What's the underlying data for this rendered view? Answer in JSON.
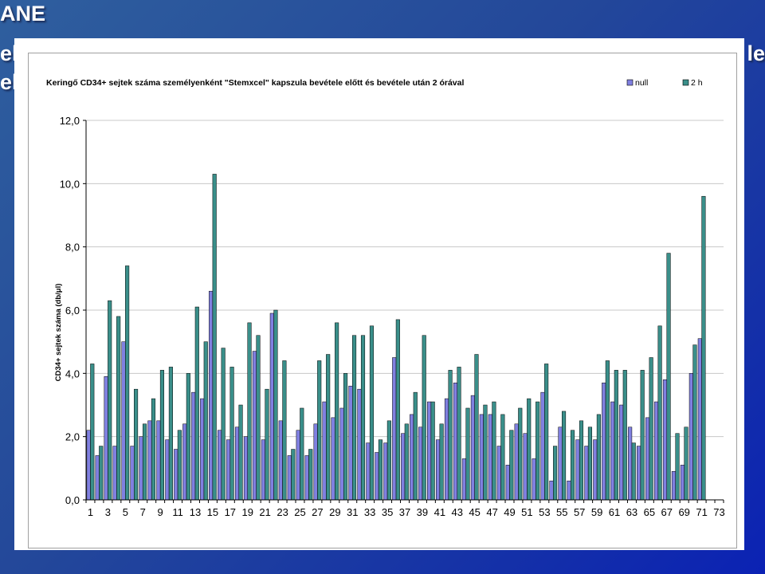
{
  "slide": {
    "title_fragment": "ANE",
    "line1_left_fragment": "el",
    "line1_right_fragment": "le",
    "line2_left_fragment": "el"
  },
  "colors": {
    "null_fill": "#8080e0",
    "two_h_fill": "#3a8f8a",
    "axis": "#000000",
    "grid": "#c8c8c8"
  },
  "chart_data": {
    "type": "bar",
    "title": "Keringő CD34+ sejtek száma személyenként \"Stemxcel\" kapszula bevétele előtt és bevétele után 2 órával",
    "xlabel": "",
    "ylabel": "CD34+ sejtek száma (db/μl)",
    "ylim": [
      0,
      12
    ],
    "yticks": [
      "0,0",
      "2,0",
      "4,0",
      "6,0",
      "8,0",
      "10,0",
      "12,0"
    ],
    "grid": true,
    "legend_position": "top-right",
    "x_tick_labels": [
      "1",
      "3",
      "5",
      "7",
      "9",
      "11",
      "13",
      "15",
      "17",
      "19",
      "21",
      "23",
      "25",
      "27",
      "29",
      "31",
      "33",
      "35",
      "37",
      "39",
      "41",
      "43",
      "45",
      "47",
      "49",
      "51",
      "53",
      "55",
      "57",
      "59",
      "61",
      "63",
      "65",
      "67",
      "69",
      "71",
      "73"
    ],
    "categories_count": 73,
    "series": [
      {
        "name": "null",
        "values": [
          2.2,
          1.4,
          3.9,
          1.7,
          5.0,
          1.7,
          2.0,
          2.5,
          2.5,
          1.9,
          1.6,
          2.4,
          3.4,
          3.2,
          6.6,
          2.2,
          1.9,
          2.3,
          2.0,
          4.7,
          1.9,
          5.9,
          2.5,
          1.4,
          2.2,
          1.4,
          2.4,
          3.1,
          2.6,
          2.9,
          3.6,
          3.5,
          1.8,
          1.5,
          1.8,
          4.5,
          2.1,
          2.7,
          2.3,
          3.1,
          1.9,
          3.2,
          3.7,
          1.3,
          3.3,
          2.7,
          2.7,
          1.7,
          1.1,
          2.4,
          2.1,
          1.3,
          3.4,
          0.6,
          2.3,
          0.6,
          1.9,
          1.7,
          1.9,
          3.7,
          3.1,
          3.0,
          2.3,
          1.7,
          2.6,
          3.1,
          3.8,
          0.9,
          1.1,
          4.0,
          5.1,
          0,
          0
        ]
      },
      {
        "name": "2 h",
        "values": [
          4.3,
          1.7,
          6.3,
          5.8,
          7.4,
          3.5,
          2.4,
          3.2,
          4.1,
          4.2,
          2.2,
          4.0,
          6.1,
          5.0,
          10.3,
          4.8,
          4.2,
          3.0,
          5.6,
          5.2,
          3.5,
          6.0,
          4.4,
          1.6,
          2.9,
          1.6,
          4.4,
          4.6,
          5.6,
          4.0,
          5.2,
          5.2,
          5.5,
          1.9,
          2.5,
          5.7,
          2.4,
          3.4,
          5.2,
          3.1,
          2.4,
          4.1,
          4.2,
          2.9,
          4.6,
          3.0,
          3.1,
          2.7,
          2.2,
          2.9,
          3.2,
          3.1,
          4.3,
          1.7,
          2.8,
          2.2,
          2.5,
          2.3,
          2.7,
          4.4,
          4.1,
          4.1,
          1.8,
          4.1,
          4.5,
          5.5,
          7.8,
          2.1,
          2.3,
          4.9,
          9.6,
          0,
          0
        ]
      }
    ]
  }
}
